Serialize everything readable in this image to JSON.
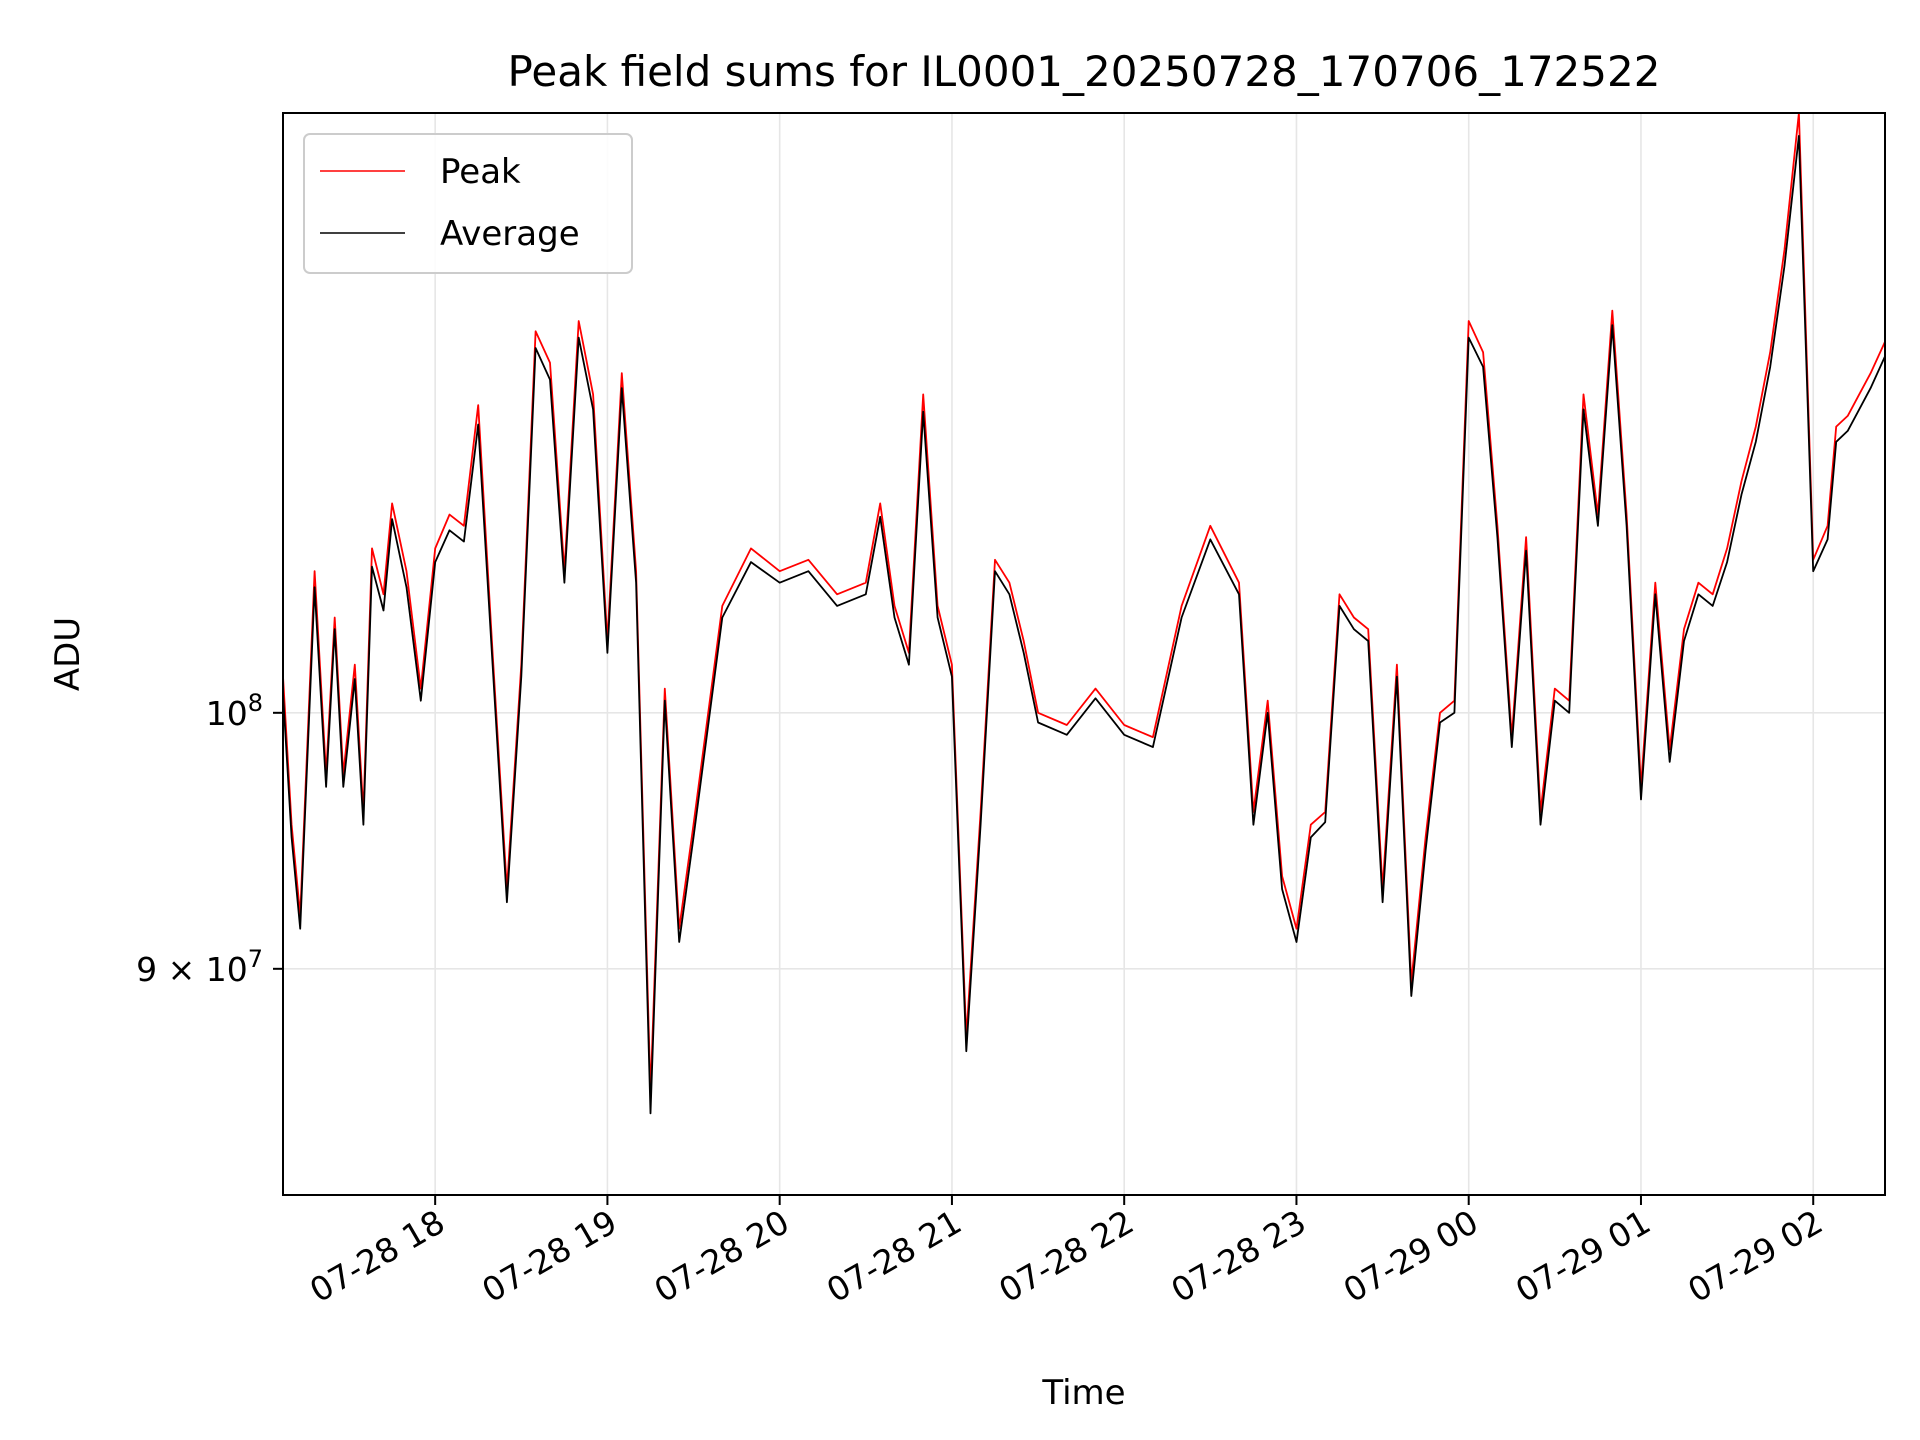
{
  "chart_data": {
    "type": "line",
    "title": "Peak field sums for IL0001_20250728_170706_172522",
    "xlabel": "Time",
    "ylabel": "ADU",
    "y_scale": "log",
    "grid": true,
    "legend_position": "top-left",
    "x_range": [
      "2025-07-28 17:07",
      "2025-07-29 02:25"
    ],
    "ylim": [
      82000000,
      128000000
    ],
    "x_ticks": [
      "07-28 18",
      "07-28 19",
      "07-28 20",
      "07-28 21",
      "07-28 22",
      "07-28 23",
      "07-29 00",
      "07-29 01",
      "07-29 02"
    ],
    "y_ticks": [
      {
        "value": 90000000,
        "base": "9 × 10",
        "exp": "7"
      },
      {
        "value": 100000000,
        "base": "10",
        "exp": "8"
      }
    ],
    "colors": {
      "peak": "#ff0000",
      "average": "#000000",
      "grid": "#e6e6e6"
    },
    "series": [
      {
        "name": "Peak",
        "color": "#ff0000",
        "x": [
          "2025-07-28 17:07",
          "2025-07-28 17:10",
          "2025-07-28 17:13",
          "2025-07-28 17:18",
          "2025-07-28 17:22",
          "2025-07-28 17:25",
          "2025-07-28 17:28",
          "2025-07-28 17:32",
          "2025-07-28 17:35",
          "2025-07-28 17:38",
          "2025-07-28 17:42",
          "2025-07-28 17:45",
          "2025-07-28 17:50",
          "2025-07-28 17:55",
          "2025-07-28 18:00",
          "2025-07-28 18:05",
          "2025-07-28 18:10",
          "2025-07-28 18:15",
          "2025-07-28 18:20",
          "2025-07-28 18:25",
          "2025-07-28 18:30",
          "2025-07-28 18:35",
          "2025-07-28 18:40",
          "2025-07-28 18:45",
          "2025-07-28 18:50",
          "2025-07-28 18:55",
          "2025-07-28 19:00",
          "2025-07-28 19:05",
          "2025-07-28 19:10",
          "2025-07-28 19:15",
          "2025-07-28 19:20",
          "2025-07-28 19:25",
          "2025-07-28 19:30",
          "2025-07-28 19:40",
          "2025-07-28 19:50",
          "2025-07-28 20:00",
          "2025-07-28 20:10",
          "2025-07-28 20:20",
          "2025-07-28 20:30",
          "2025-07-28 20:35",
          "2025-07-28 20:40",
          "2025-07-28 20:45",
          "2025-07-28 20:50",
          "2025-07-28 20:55",
          "2025-07-28 21:00",
          "2025-07-28 21:05",
          "2025-07-28 21:10",
          "2025-07-28 21:15",
          "2025-07-28 21:20",
          "2025-07-28 21:25",
          "2025-07-28 21:30",
          "2025-07-28 21:40",
          "2025-07-28 21:50",
          "2025-07-28 22:00",
          "2025-07-28 22:10",
          "2025-07-28 22:20",
          "2025-07-28 22:30",
          "2025-07-28 22:40",
          "2025-07-28 22:45",
          "2025-07-28 22:50",
          "2025-07-28 22:55",
          "2025-07-28 23:00",
          "2025-07-28 23:05",
          "2025-07-28 23:10",
          "2025-07-28 23:15",
          "2025-07-28 23:20",
          "2025-07-28 23:25",
          "2025-07-28 23:30",
          "2025-07-28 23:35",
          "2025-07-28 23:40",
          "2025-07-28 23:45",
          "2025-07-28 23:50",
          "2025-07-28 23:55",
          "2025-07-29 00:00",
          "2025-07-29 00:05",
          "2025-07-29 00:10",
          "2025-07-29 00:15",
          "2025-07-29 00:20",
          "2025-07-29 00:25",
          "2025-07-29 00:30",
          "2025-07-29 00:35",
          "2025-07-29 00:40",
          "2025-07-29 00:45",
          "2025-07-29 00:50",
          "2025-07-29 00:55",
          "2025-07-29 01:00",
          "2025-07-29 01:05",
          "2025-07-29 01:10",
          "2025-07-29 01:15",
          "2025-07-29 01:20",
          "2025-07-29 01:25",
          "2025-07-29 01:30",
          "2025-07-29 01:35",
          "2025-07-29 01:40",
          "2025-07-29 01:45",
          "2025-07-29 01:50",
          "2025-07-29 01:55",
          "2025-07-29 02:00",
          "2025-07-29 02:05",
          "2025-07-29 02:08",
          "2025-07-29 02:12",
          "2025-07-29 02:16",
          "2025-07-29 02:20",
          "2025-07-29 02:25"
        ],
        "y": [
          101500000,
          95500000,
          92000000,
          106000000,
          97500000,
          104000000,
          97500000,
          102000000,
          96000000,
          107000000,
          105000000,
          109000000,
          106000000,
          101000000,
          107000000,
          108500000,
          108000000,
          113500000,
          102500000,
          93000000,
          102000000,
          117000000,
          115500000,
          106000000,
          117500000,
          114000000,
          103000000,
          115000000,
          106000000,
          85500000,
          101000000,
          91500000,
          95500000,
          104500000,
          107000000,
          106000000,
          106500000,
          105000000,
          105500000,
          109000000,
          104500000,
          102500000,
          114000000,
          104500000,
          102000000,
          87500000,
          96000000,
          106500000,
          105500000,
          103000000,
          100000000,
          99500000,
          101000000,
          99500000,
          99000000,
          104500000,
          108000000,
          105500000,
          96000000,
          100500000,
          93500000,
          91500000,
          95500000,
          96000000,
          105000000,
          104000000,
          103500000,
          93000000,
          102000000,
          89500000,
          95000000,
          100000000,
          100500000,
          117500000,
          116000000,
          108000000,
          99000000,
          107500000,
          96000000,
          101000000,
          100500000,
          114000000,
          108500000,
          118000000,
          108500000,
          97000000,
          105500000,
          98500000,
          103500000,
          105500000,
          105000000,
          107000000,
          110000000,
          112500000,
          116000000,
          121000000,
          128000000,
          106500000,
          108000000,
          112500000,
          113000000,
          114000000,
          115000000,
          116500000
        ]
      },
      {
        "name": "Average",
        "color": "#000000",
        "x": [
          "2025-07-28 17:07",
          "2025-07-28 17:10",
          "2025-07-28 17:13",
          "2025-07-28 17:18",
          "2025-07-28 17:22",
          "2025-07-28 17:25",
          "2025-07-28 17:28",
          "2025-07-28 17:32",
          "2025-07-28 17:35",
          "2025-07-28 17:38",
          "2025-07-28 17:42",
          "2025-07-28 17:45",
          "2025-07-28 17:50",
          "2025-07-28 17:55",
          "2025-07-28 18:00",
          "2025-07-28 18:05",
          "2025-07-28 18:10",
          "2025-07-28 18:15",
          "2025-07-28 18:20",
          "2025-07-28 18:25",
          "2025-07-28 18:30",
          "2025-07-28 18:35",
          "2025-07-28 18:40",
          "2025-07-28 18:45",
          "2025-07-28 18:50",
          "2025-07-28 18:55",
          "2025-07-28 19:00",
          "2025-07-28 19:05",
          "2025-07-28 19:10",
          "2025-07-28 19:15",
          "2025-07-28 19:20",
          "2025-07-28 19:25",
          "2025-07-28 19:30",
          "2025-07-28 19:40",
          "2025-07-28 19:50",
          "2025-07-28 20:00",
          "2025-07-28 20:10",
          "2025-07-28 20:20",
          "2025-07-28 20:30",
          "2025-07-28 20:35",
          "2025-07-28 20:40",
          "2025-07-28 20:45",
          "2025-07-28 20:50",
          "2025-07-28 20:55",
          "2025-07-28 21:00",
          "2025-07-28 21:05",
          "2025-07-28 21:10",
          "2025-07-28 21:15",
          "2025-07-28 21:20",
          "2025-07-28 21:25",
          "2025-07-28 21:30",
          "2025-07-28 21:40",
          "2025-07-28 21:50",
          "2025-07-28 22:00",
          "2025-07-28 22:10",
          "2025-07-28 22:20",
          "2025-07-28 22:30",
          "2025-07-28 22:40",
          "2025-07-28 22:45",
          "2025-07-28 22:50",
          "2025-07-28 22:55",
          "2025-07-28 23:00",
          "2025-07-28 23:05",
          "2025-07-28 23:10",
          "2025-07-28 23:15",
          "2025-07-28 23:20",
          "2025-07-28 23:25",
          "2025-07-28 23:30",
          "2025-07-28 23:35",
          "2025-07-28 23:40",
          "2025-07-28 23:45",
          "2025-07-28 23:50",
          "2025-07-28 23:55",
          "2025-07-29 00:00",
          "2025-07-29 00:05",
          "2025-07-29 00:10",
          "2025-07-29 00:15",
          "2025-07-29 00:20",
          "2025-07-29 00:25",
          "2025-07-29 00:30",
          "2025-07-29 00:35",
          "2025-07-29 00:40",
          "2025-07-29 00:45",
          "2025-07-29 00:50",
          "2025-07-29 00:55",
          "2025-07-29 01:00",
          "2025-07-29 01:05",
          "2025-07-29 01:10",
          "2025-07-29 01:15",
          "2025-07-29 01:20",
          "2025-07-29 01:25",
          "2025-07-29 01:30",
          "2025-07-29 01:35",
          "2025-07-29 01:40",
          "2025-07-29 01:45",
          "2025-07-29 01:50",
          "2025-07-29 01:55",
          "2025-07-29 02:00",
          "2025-07-29 02:05",
          "2025-07-29 02:08",
          "2025-07-29 02:12",
          "2025-07-29 02:16",
          "2025-07-29 02:20",
          "2025-07-29 02:25"
        ],
        "y": [
          100800000,
          95000000,
          91500000,
          105300000,
          97000000,
          103500000,
          97000000,
          101400000,
          95500000,
          106200000,
          104300000,
          108300000,
          105300000,
          100500000,
          106400000,
          107800000,
          107300000,
          112600000,
          102000000,
          92500000,
          101500000,
          116200000,
          114700000,
          105500000,
          116700000,
          113300000,
          102500000,
          114300000,
          105500000,
          84800000,
          100500000,
          91000000,
          95000000,
          104000000,
          106400000,
          105500000,
          106000000,
          104500000,
          105000000,
          108400000,
          104000000,
          102000000,
          113200000,
          104000000,
          101500000,
          87000000,
          95500000,
          106000000,
          105000000,
          102500000,
          99600000,
          99100000,
          100600000,
          99100000,
          98600000,
          104000000,
          107400000,
          105000000,
          95500000,
          100000000,
          93000000,
          91000000,
          95000000,
          95600000,
          104500000,
          103500000,
          103000000,
          92500000,
          101500000,
          89000000,
          94500000,
          99600000,
          100000000,
          116700000,
          115300000,
          107500000,
          98600000,
          106900000,
          95500000,
          100500000,
          100000000,
          113300000,
          108000000,
          117300000,
          108000000,
          96500000,
          105000000,
          98000000,
          103000000,
          105000000,
          104500000,
          106400000,
          109400000,
          111800000,
          115300000,
          120200000,
          126800000,
          106000000,
          107400000,
          111800000,
          112300000,
          113300000,
          114300000,
          115800000
        ]
      }
    ]
  }
}
